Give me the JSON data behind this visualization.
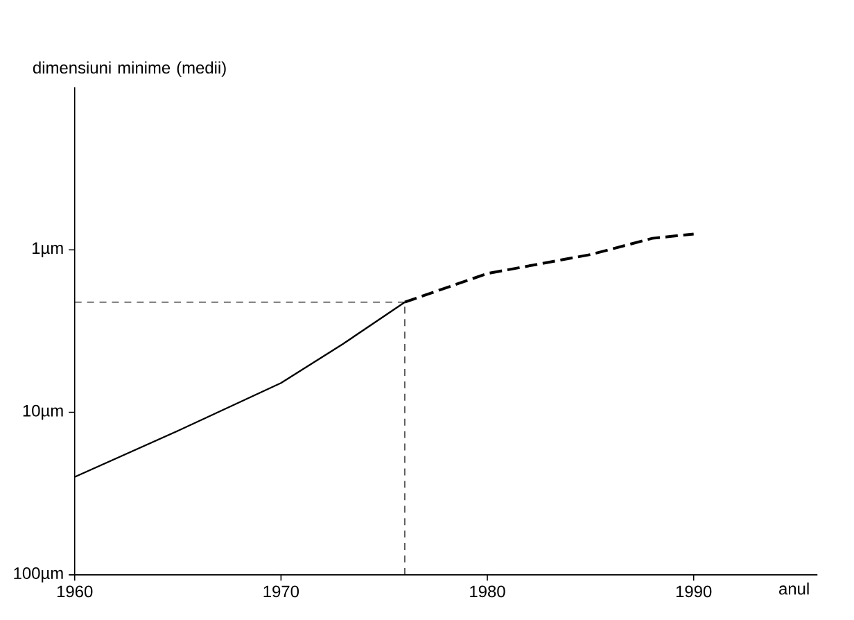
{
  "chart_data": {
    "type": "line",
    "xlabel": "anul",
    "ylabel": "dimensiuni minime (medii)",
    "xlim": [
      1960,
      1996
    ],
    "xticks": [
      1960,
      1970,
      1980,
      1990
    ],
    "ylim": [
      100,
      0.1
    ],
    "log": "y",
    "yticks": [
      {
        "value": 1,
        "label": "1µm"
      },
      {
        "value": 10,
        "label": "10µm"
      },
      {
        "value": 100,
        "label": "100µm"
      }
    ],
    "series": [
      {
        "color": "#000000",
        "line_style": "solid",
        "x": [
          1960,
          1965,
          1970,
          1973,
          1976
        ],
        "values": [
          25,
          13,
          6.6,
          3.8,
          2.1
        ]
      },
      {
        "color": "#000000",
        "line_style": "dashed",
        "x": [
          1976,
          1980,
          1985,
          1988,
          1990
        ],
        "values": [
          2.1,
          1.4,
          1.07,
          0.85,
          0.8
        ]
      }
    ],
    "ref_lines": [
      {
        "axis": "x",
        "value": 1976,
        "line_style": "dashed"
      },
      {
        "axis": "y",
        "value": 2.1,
        "line_style": "dashed"
      }
    ],
    "marker": "none"
  }
}
